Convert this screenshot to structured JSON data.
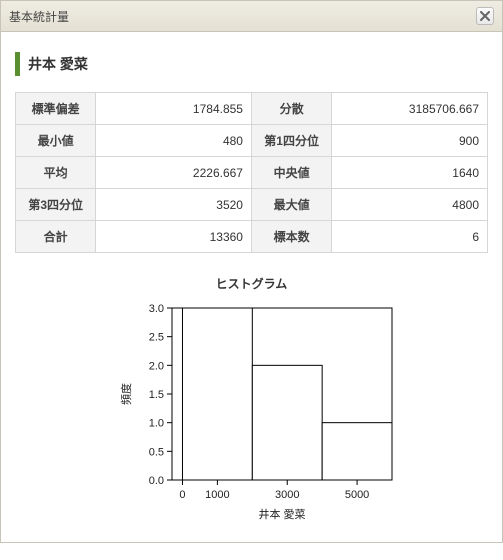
{
  "dialog": {
    "title": "基本統計量"
  },
  "subject": {
    "name": "井本 愛菜"
  },
  "stats": {
    "rows": [
      {
        "l1": "標準偏差",
        "v1": "1784.855",
        "l2": "分散",
        "v2": "3185706.667"
      },
      {
        "l1": "最小値",
        "v1": "480",
        "l2": "第1四分位",
        "v2": "900"
      },
      {
        "l1": "平均",
        "v1": "2226.667",
        "l2": "中央値",
        "v2": "1640"
      },
      {
        "l1": "第3四分位",
        "v1": "3520",
        "l2": "最大値",
        "v2": "4800"
      },
      {
        "l1": "合計",
        "v1": "13360",
        "l2": "標本数",
        "v2": "6"
      }
    ]
  },
  "histogram": {
    "type": "histogram",
    "title": "ヒストグラム",
    "xlabel": "井本 愛菜",
    "ylabel": "頻度",
    "x_ticks": [
      0,
      1000,
      3000,
      5000
    ],
    "y_ticks": [
      0.0,
      0.5,
      1.0,
      1.5,
      2.0,
      2.5,
      3.0
    ],
    "ylim": [
      0,
      3.0
    ],
    "xlim": [
      -300,
      6000
    ],
    "bars": [
      {
        "x0": 0,
        "x1": 2000,
        "count": 3
      },
      {
        "x0": 2000,
        "x1": 4000,
        "count": 2
      },
      {
        "x0": 4000,
        "x1": 6000,
        "count": 1
      }
    ],
    "bar_fill": "#ffffff",
    "bar_stroke": "#000000",
    "bar_stroke_width": 1,
    "axis_color": "#000000",
    "background": "#ffffff",
    "tick_fontsize": 11,
    "label_fontsize": 11
  }
}
